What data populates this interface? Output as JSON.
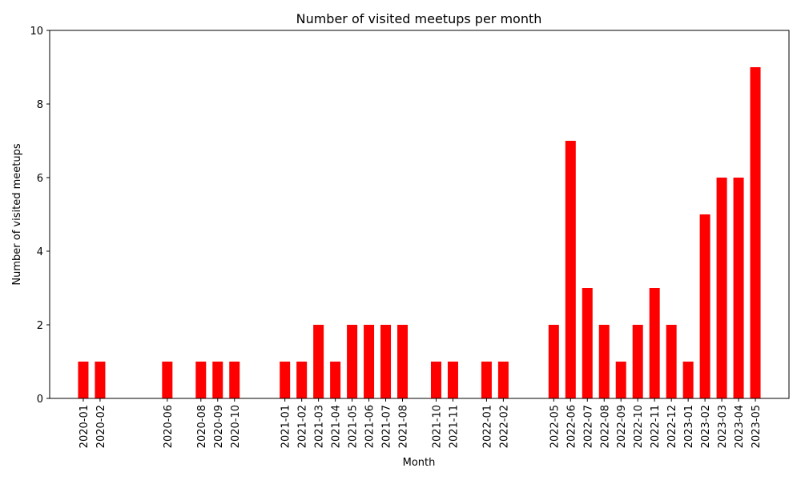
{
  "chart_data": {
    "type": "bar",
    "title": "Number of visited meetups per month",
    "xlabel": "Month",
    "ylabel": "Number of visited meetups",
    "ylim": [
      0,
      10
    ],
    "yticks": [
      0,
      2,
      4,
      6,
      8,
      10
    ],
    "x_axis_type": "time-monthly",
    "x_range_months": [
      "2019-11",
      "2023-07"
    ],
    "bar_color": "#ff0000",
    "grid": false,
    "legend": "none",
    "categories": [
      "2020-01",
      "2020-02",
      "2020-06",
      "2020-08",
      "2020-09",
      "2020-10",
      "2021-01",
      "2021-02",
      "2021-03",
      "2021-04",
      "2021-05",
      "2021-06",
      "2021-07",
      "2021-08",
      "2021-10",
      "2021-11",
      "2022-01",
      "2022-02",
      "2022-05",
      "2022-06",
      "2022-07",
      "2022-08",
      "2022-09",
      "2022-10",
      "2022-11",
      "2022-12",
      "2023-01",
      "2023-02",
      "2023-03",
      "2023-04",
      "2023-05"
    ],
    "values": [
      1,
      1,
      1,
      1,
      1,
      1,
      1,
      1,
      2,
      1,
      2,
      2,
      2,
      2,
      1,
      1,
      1,
      1,
      2,
      7,
      3,
      2,
      1,
      2,
      3,
      2,
      1,
      5,
      6,
      6,
      9
    ]
  }
}
